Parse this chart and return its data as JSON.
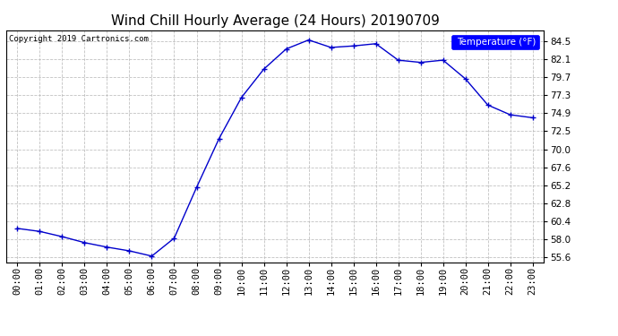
{
  "title": "Wind Chill Hourly Average (24 Hours) 20190709",
  "copyright_text": "Copyright 2019 Cartronics.com",
  "legend_label": "Temperature (°F)",
  "hours": [
    "00:00",
    "01:00",
    "02:00",
    "03:00",
    "04:00",
    "05:00",
    "06:00",
    "07:00",
    "08:00",
    "09:00",
    "10:00",
    "11:00",
    "12:00",
    "13:00",
    "14:00",
    "15:00",
    "16:00",
    "17:00",
    "18:00",
    "19:00",
    "20:00",
    "21:00",
    "22:00",
    "23:00"
  ],
  "values": [
    59.5,
    59.1,
    58.4,
    57.6,
    57.0,
    56.5,
    55.8,
    58.2,
    65.0,
    71.5,
    77.0,
    80.8,
    83.5,
    84.7,
    83.7,
    83.9,
    84.2,
    82.0,
    81.7,
    82.0,
    79.5,
    76.0,
    74.7,
    74.3
  ],
  "ylim": [
    55.0,
    86.0
  ],
  "yticks": [
    55.6,
    58.0,
    60.4,
    62.8,
    65.2,
    67.6,
    70.0,
    72.5,
    74.9,
    77.3,
    79.7,
    82.1,
    84.5
  ],
  "line_color": "#0000cc",
  "marker": "+",
  "bg_color": "#ffffff",
  "grid_color": "#bbbbbb",
  "title_fontsize": 11,
  "tick_fontsize": 7.5,
  "copyright_fontsize": 6.5,
  "legend_fontsize": 7.5
}
